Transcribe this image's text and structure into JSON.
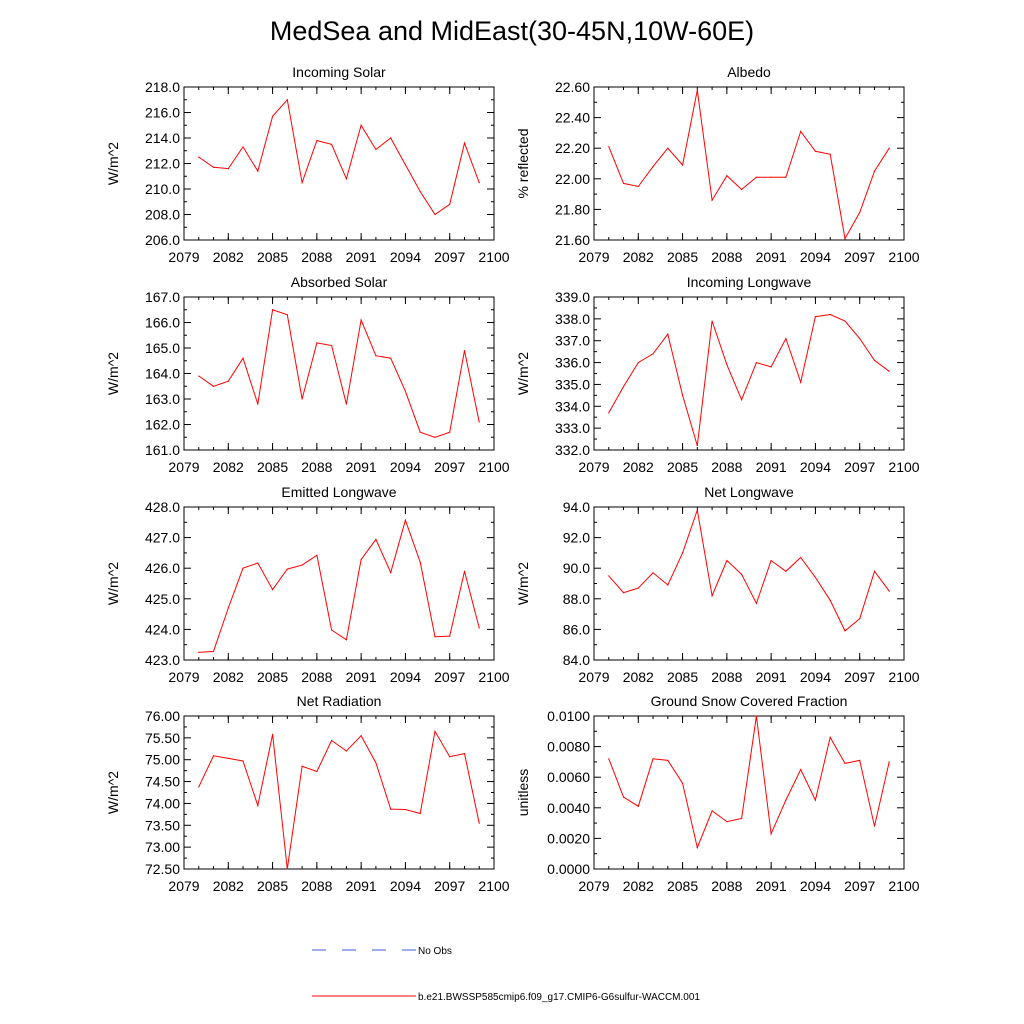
{
  "figure": {
    "title": "MedSea and MidEast(30-45N,10W-60E)",
    "legend": [
      {
        "label": "No Obs",
        "color": "#3b5bdb",
        "style": "dashed"
      },
      {
        "label": "b.e21.BWSSP585cmip6.f09_g17.CMIP6-G6sulfur-WACCM.001",
        "color": "#ff0000",
        "style": "solid"
      }
    ]
  },
  "chart_data": [
    {
      "type": "line",
      "title": "Incoming Solar",
      "ylabel": "W/m^2",
      "xlim": [
        2079,
        2100
      ],
      "ylim": [
        206.0,
        218.0
      ],
      "xticks": [
        "2079",
        "2082",
        "2085",
        "2088",
        "2091",
        "2094",
        "2097",
        "2100"
      ],
      "yticks": [
        "206.0",
        "208.0",
        "210.0",
        "212.0",
        "214.0",
        "216.0",
        "218.0"
      ],
      "x": [
        2080,
        2081,
        2082,
        2083,
        2084,
        2085,
        2086,
        2087,
        2088,
        2089,
        2090,
        2091,
        2092,
        2093,
        2094,
        2095,
        2096,
        2097,
        2098,
        2099
      ],
      "y": [
        212.5,
        211.7,
        211.6,
        213.3,
        211.4,
        215.7,
        217.0,
        210.5,
        213.8,
        213.5,
        210.8,
        215.0,
        213.1,
        214.0,
        211.9,
        209.8,
        208.0,
        208.8,
        213.6,
        210.5
      ],
      "color": "#ff0000"
    },
    {
      "type": "line",
      "title": "Albedo",
      "ylabel": "% reflected",
      "xlim": [
        2079,
        2100
      ],
      "ylim": [
        21.6,
        22.6
      ],
      "xticks": [
        "2079",
        "2082",
        "2085",
        "2088",
        "2091",
        "2094",
        "2097",
        "2100"
      ],
      "yticks": [
        "21.60",
        "21.80",
        "22.00",
        "22.20",
        "22.40",
        "22.60"
      ],
      "x": [
        2080,
        2081,
        2082,
        2083,
        2084,
        2085,
        2086,
        2087,
        2088,
        2089,
        2090,
        2091,
        2092,
        2093,
        2094,
        2095,
        2096,
        2097,
        2098,
        2099
      ],
      "y": [
        22.21,
        21.97,
        21.95,
        22.08,
        22.2,
        22.09,
        22.58,
        21.86,
        22.02,
        21.93,
        22.01,
        22.01,
        22.01,
        22.31,
        22.18,
        22.16,
        21.61,
        21.78,
        22.05,
        22.2
      ],
      "color": "#ff0000"
    },
    {
      "type": "line",
      "title": "Absorbed Solar",
      "ylabel": "W/m^2",
      "xlim": [
        2079,
        2100
      ],
      "ylim": [
        161.0,
        167.0
      ],
      "xticks": [
        "2079",
        "2082",
        "2085",
        "2088",
        "2091",
        "2094",
        "2097",
        "2100"
      ],
      "yticks": [
        "161.0",
        "162.0",
        "163.0",
        "164.0",
        "165.0",
        "166.0",
        "167.0"
      ],
      "x": [
        2080,
        2081,
        2082,
        2083,
        2084,
        2085,
        2086,
        2087,
        2088,
        2089,
        2090,
        2091,
        2092,
        2093,
        2094,
        2095,
        2096,
        2097,
        2098,
        2099
      ],
      "y": [
        163.9,
        163.5,
        163.7,
        164.6,
        162.8,
        166.5,
        166.3,
        163.0,
        165.2,
        165.1,
        162.8,
        166.1,
        164.7,
        164.6,
        163.3,
        161.7,
        161.5,
        161.7,
        164.9,
        162.1
      ],
      "color": "#ff0000"
    },
    {
      "type": "line",
      "title": "Incoming Longwave",
      "ylabel": "W/m^2",
      "xlim": [
        2079,
        2100
      ],
      "ylim": [
        332.0,
        339.0
      ],
      "xticks": [
        "2079",
        "2082",
        "2085",
        "2088",
        "2091",
        "2094",
        "2097",
        "2100"
      ],
      "yticks": [
        "332.0",
        "333.0",
        "334.0",
        "335.0",
        "336.0",
        "337.0",
        "338.0",
        "339.0"
      ],
      "x": [
        2080,
        2081,
        2082,
        2083,
        2084,
        2085,
        2086,
        2087,
        2088,
        2089,
        2090,
        2091,
        2092,
        2093,
        2094,
        2095,
        2096,
        2097,
        2098,
        2099
      ],
      "y": [
        333.7,
        334.9,
        336.0,
        336.4,
        337.3,
        334.5,
        332.2,
        337.9,
        335.9,
        334.3,
        336.0,
        335.8,
        337.1,
        335.1,
        338.1,
        338.2,
        337.9,
        337.1,
        336.1,
        335.6
      ],
      "color": "#ff0000"
    },
    {
      "type": "line",
      "title": "Emitted Longwave",
      "ylabel": "W/m^2",
      "xlim": [
        2079,
        2100
      ],
      "ylim": [
        423.0,
        428.0
      ],
      "xticks": [
        "2079",
        "2082",
        "2085",
        "2088",
        "2091",
        "2094",
        "2097",
        "2100"
      ],
      "yticks": [
        "423.0",
        "424.0",
        "425.0",
        "426.0",
        "427.0",
        "428.0"
      ],
      "x": [
        2080,
        2081,
        2082,
        2083,
        2084,
        2085,
        2086,
        2087,
        2088,
        2089,
        2090,
        2091,
        2092,
        2093,
        2094,
        2095,
        2096,
        2097,
        2098,
        2099
      ],
      "y": [
        423.25,
        423.28,
        424.7,
        426.0,
        426.17,
        425.3,
        425.97,
        426.1,
        426.42,
        423.98,
        423.66,
        426.28,
        426.94,
        425.86,
        427.57,
        426.2,
        423.76,
        423.78,
        425.9,
        424.05
      ],
      "color": "#ff0000"
    },
    {
      "type": "line",
      "title": "Net Longwave",
      "ylabel": "W/m^2",
      "xlim": [
        2079,
        2100
      ],
      "ylim": [
        84.0,
        94.0
      ],
      "xticks": [
        "2079",
        "2082",
        "2085",
        "2088",
        "2091",
        "2094",
        "2097",
        "2100"
      ],
      "yticks": [
        "84.0",
        "86.0",
        "88.0",
        "90.0",
        "92.0",
        "94.0"
      ],
      "x": [
        2080,
        2081,
        2082,
        2083,
        2084,
        2085,
        2086,
        2087,
        2088,
        2089,
        2090,
        2091,
        2092,
        2093,
        2094,
        2095,
        2096,
        2097,
        2098,
        2099
      ],
      "y": [
        89.5,
        88.4,
        88.7,
        89.7,
        88.9,
        91.0,
        93.8,
        88.2,
        90.5,
        89.6,
        87.7,
        90.5,
        89.8,
        90.7,
        89.4,
        87.9,
        85.9,
        86.7,
        89.8,
        88.5
      ],
      "color": "#ff0000"
    },
    {
      "type": "line",
      "title": "Net Radiation",
      "ylabel": "W/m^2",
      "xlim": [
        2079,
        2100
      ],
      "ylim": [
        72.5,
        76.0
      ],
      "xticks": [
        "2079",
        "2082",
        "2085",
        "2088",
        "2091",
        "2094",
        "2097",
        "2100"
      ],
      "yticks": [
        "72.50",
        "73.00",
        "73.50",
        "74.00",
        "74.50",
        "75.00",
        "75.50",
        "76.00"
      ],
      "x": [
        2080,
        2081,
        2082,
        2083,
        2084,
        2085,
        2086,
        2087,
        2088,
        2089,
        2090,
        2091,
        2092,
        2093,
        2094,
        2095,
        2096,
        2097,
        2098,
        2099
      ],
      "y": [
        74.38,
        75.09,
        75.03,
        74.97,
        73.95,
        75.58,
        72.5,
        74.85,
        74.73,
        75.44,
        75.2,
        75.55,
        74.93,
        73.87,
        73.86,
        73.77,
        75.65,
        75.07,
        75.14,
        73.55
      ],
      "color": "#ff0000"
    },
    {
      "type": "line",
      "title": "Ground Snow Covered Fraction",
      "ylabel": "unitless",
      "xlim": [
        2079,
        2100
      ],
      "ylim": [
        0.0,
        0.01
      ],
      "xticks": [
        "2079",
        "2082",
        "2085",
        "2088",
        "2091",
        "2094",
        "2097",
        "2100"
      ],
      "yticks": [
        "0.0000",
        "0.0020",
        "0.0040",
        "0.0060",
        "0.0080",
        "0.0100"
      ],
      "x": [
        2080,
        2081,
        2082,
        2083,
        2084,
        2085,
        2086,
        2087,
        2088,
        2089,
        2090,
        2091,
        2092,
        2093,
        2094,
        2095,
        2096,
        2097,
        2098,
        2099
      ],
      "y": [
        0.0072,
        0.0047,
        0.0041,
        0.0072,
        0.0071,
        0.0056,
        0.0014,
        0.0038,
        0.0031,
        0.0033,
        0.01,
        0.0023,
        0.0045,
        0.0065,
        0.0045,
        0.0086,
        0.0069,
        0.0071,
        0.0028,
        0.007
      ],
      "color": "#ff0000"
    }
  ]
}
